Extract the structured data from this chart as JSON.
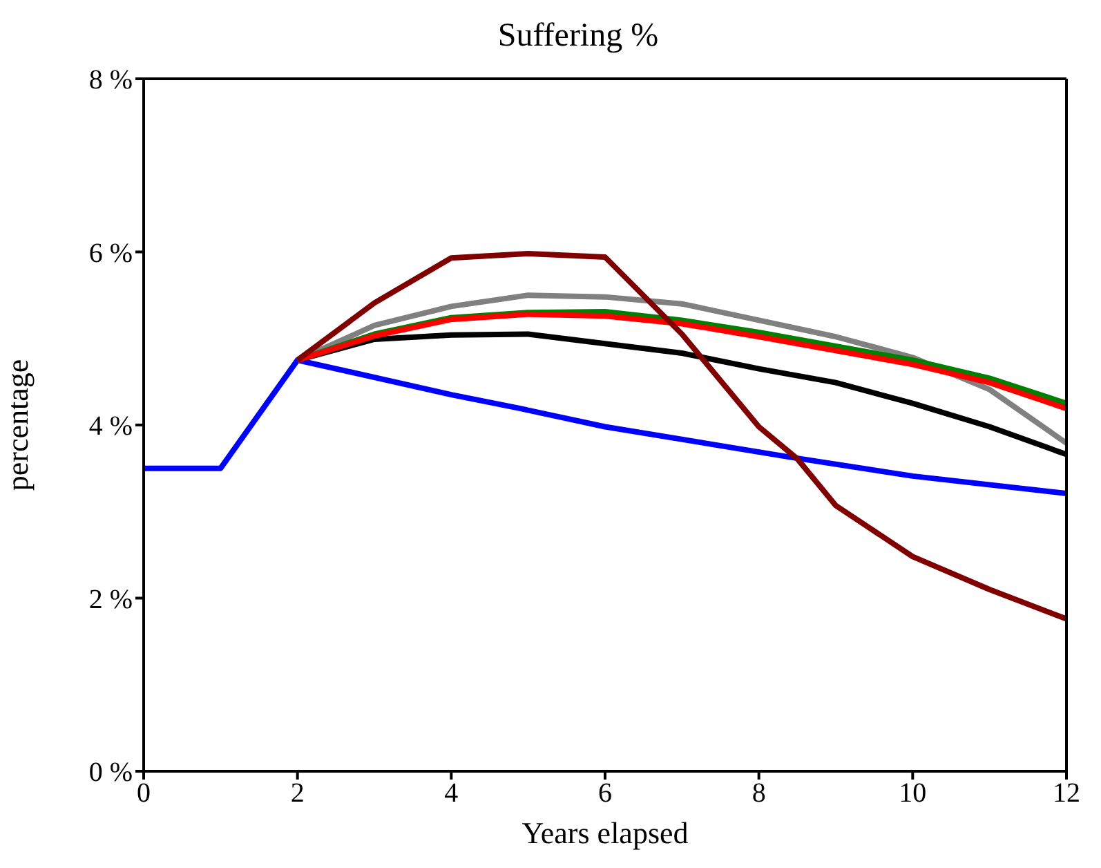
{
  "chart_data": {
    "type": "line",
    "title": "Suffering %",
    "xlabel": "Years elapsed",
    "ylabel": "percentage",
    "xlim": [
      0,
      12
    ],
    "xticks": [
      0,
      2,
      4,
      6,
      8,
      10,
      12
    ],
    "ylim": [
      0,
      8
    ],
    "yticks": [
      {
        "value": 0,
        "label": "0 %"
      },
      {
        "value": 2,
        "label": "2 %"
      },
      {
        "value": 4,
        "label": "4 %"
      },
      {
        "value": 6,
        "label": "6 %"
      },
      {
        "value": 8,
        "label": "8 %"
      }
    ],
    "grid": false,
    "legend": false,
    "marker": "none",
    "line_style": "solid",
    "series": [
      {
        "color": "#0000ff",
        "x": [
          0,
          1,
          2,
          4,
          4.9,
          6,
          8.4,
          10,
          12
        ],
        "values": [
          3.5,
          3.5,
          4.75,
          4.35,
          4.19,
          3.98,
          3.63,
          3.41,
          3.21
        ]
      },
      {
        "color": "#000000",
        "x": [
          2,
          3,
          4,
          5,
          6,
          7,
          8,
          9,
          10,
          11,
          12
        ],
        "values": [
          4.75,
          4.99,
          5.04,
          5.05,
          4.94,
          4.83,
          4.65,
          4.49,
          4.25,
          3.98,
          3.66
        ]
      },
      {
        "color": "#808080",
        "x": [
          2,
          3,
          4,
          5,
          6,
          7,
          8,
          9,
          10,
          11,
          12
        ],
        "values": [
          4.75,
          5.15,
          5.37,
          5.5,
          5.48,
          5.4,
          5.21,
          5.02,
          4.78,
          4.41,
          3.79
        ]
      },
      {
        "color": "#008000",
        "x": [
          2,
          3,
          4,
          5,
          6,
          7,
          8,
          9,
          10,
          11,
          12
        ],
        "values": [
          4.75,
          5.05,
          5.24,
          5.3,
          5.31,
          5.21,
          5.07,
          4.91,
          4.75,
          4.54,
          4.25
        ]
      },
      {
        "color": "#ff0000",
        "x": [
          2,
          3,
          4,
          5,
          6,
          7,
          8,
          9,
          10,
          11,
          12
        ],
        "values": [
          4.75,
          5.03,
          5.22,
          5.28,
          5.26,
          5.17,
          5.02,
          4.86,
          4.7,
          4.49,
          4.19
        ]
      },
      {
        "color": "#800000",
        "x": [
          2,
          3,
          4,
          5,
          6,
          7,
          8,
          8.5,
          9,
          10,
          11,
          12
        ],
        "values": [
          4.75,
          5.41,
          5.93,
          5.98,
          5.94,
          5.05,
          3.98,
          3.61,
          3.07,
          2.48,
          2.1,
          1.76
        ]
      }
    ]
  }
}
